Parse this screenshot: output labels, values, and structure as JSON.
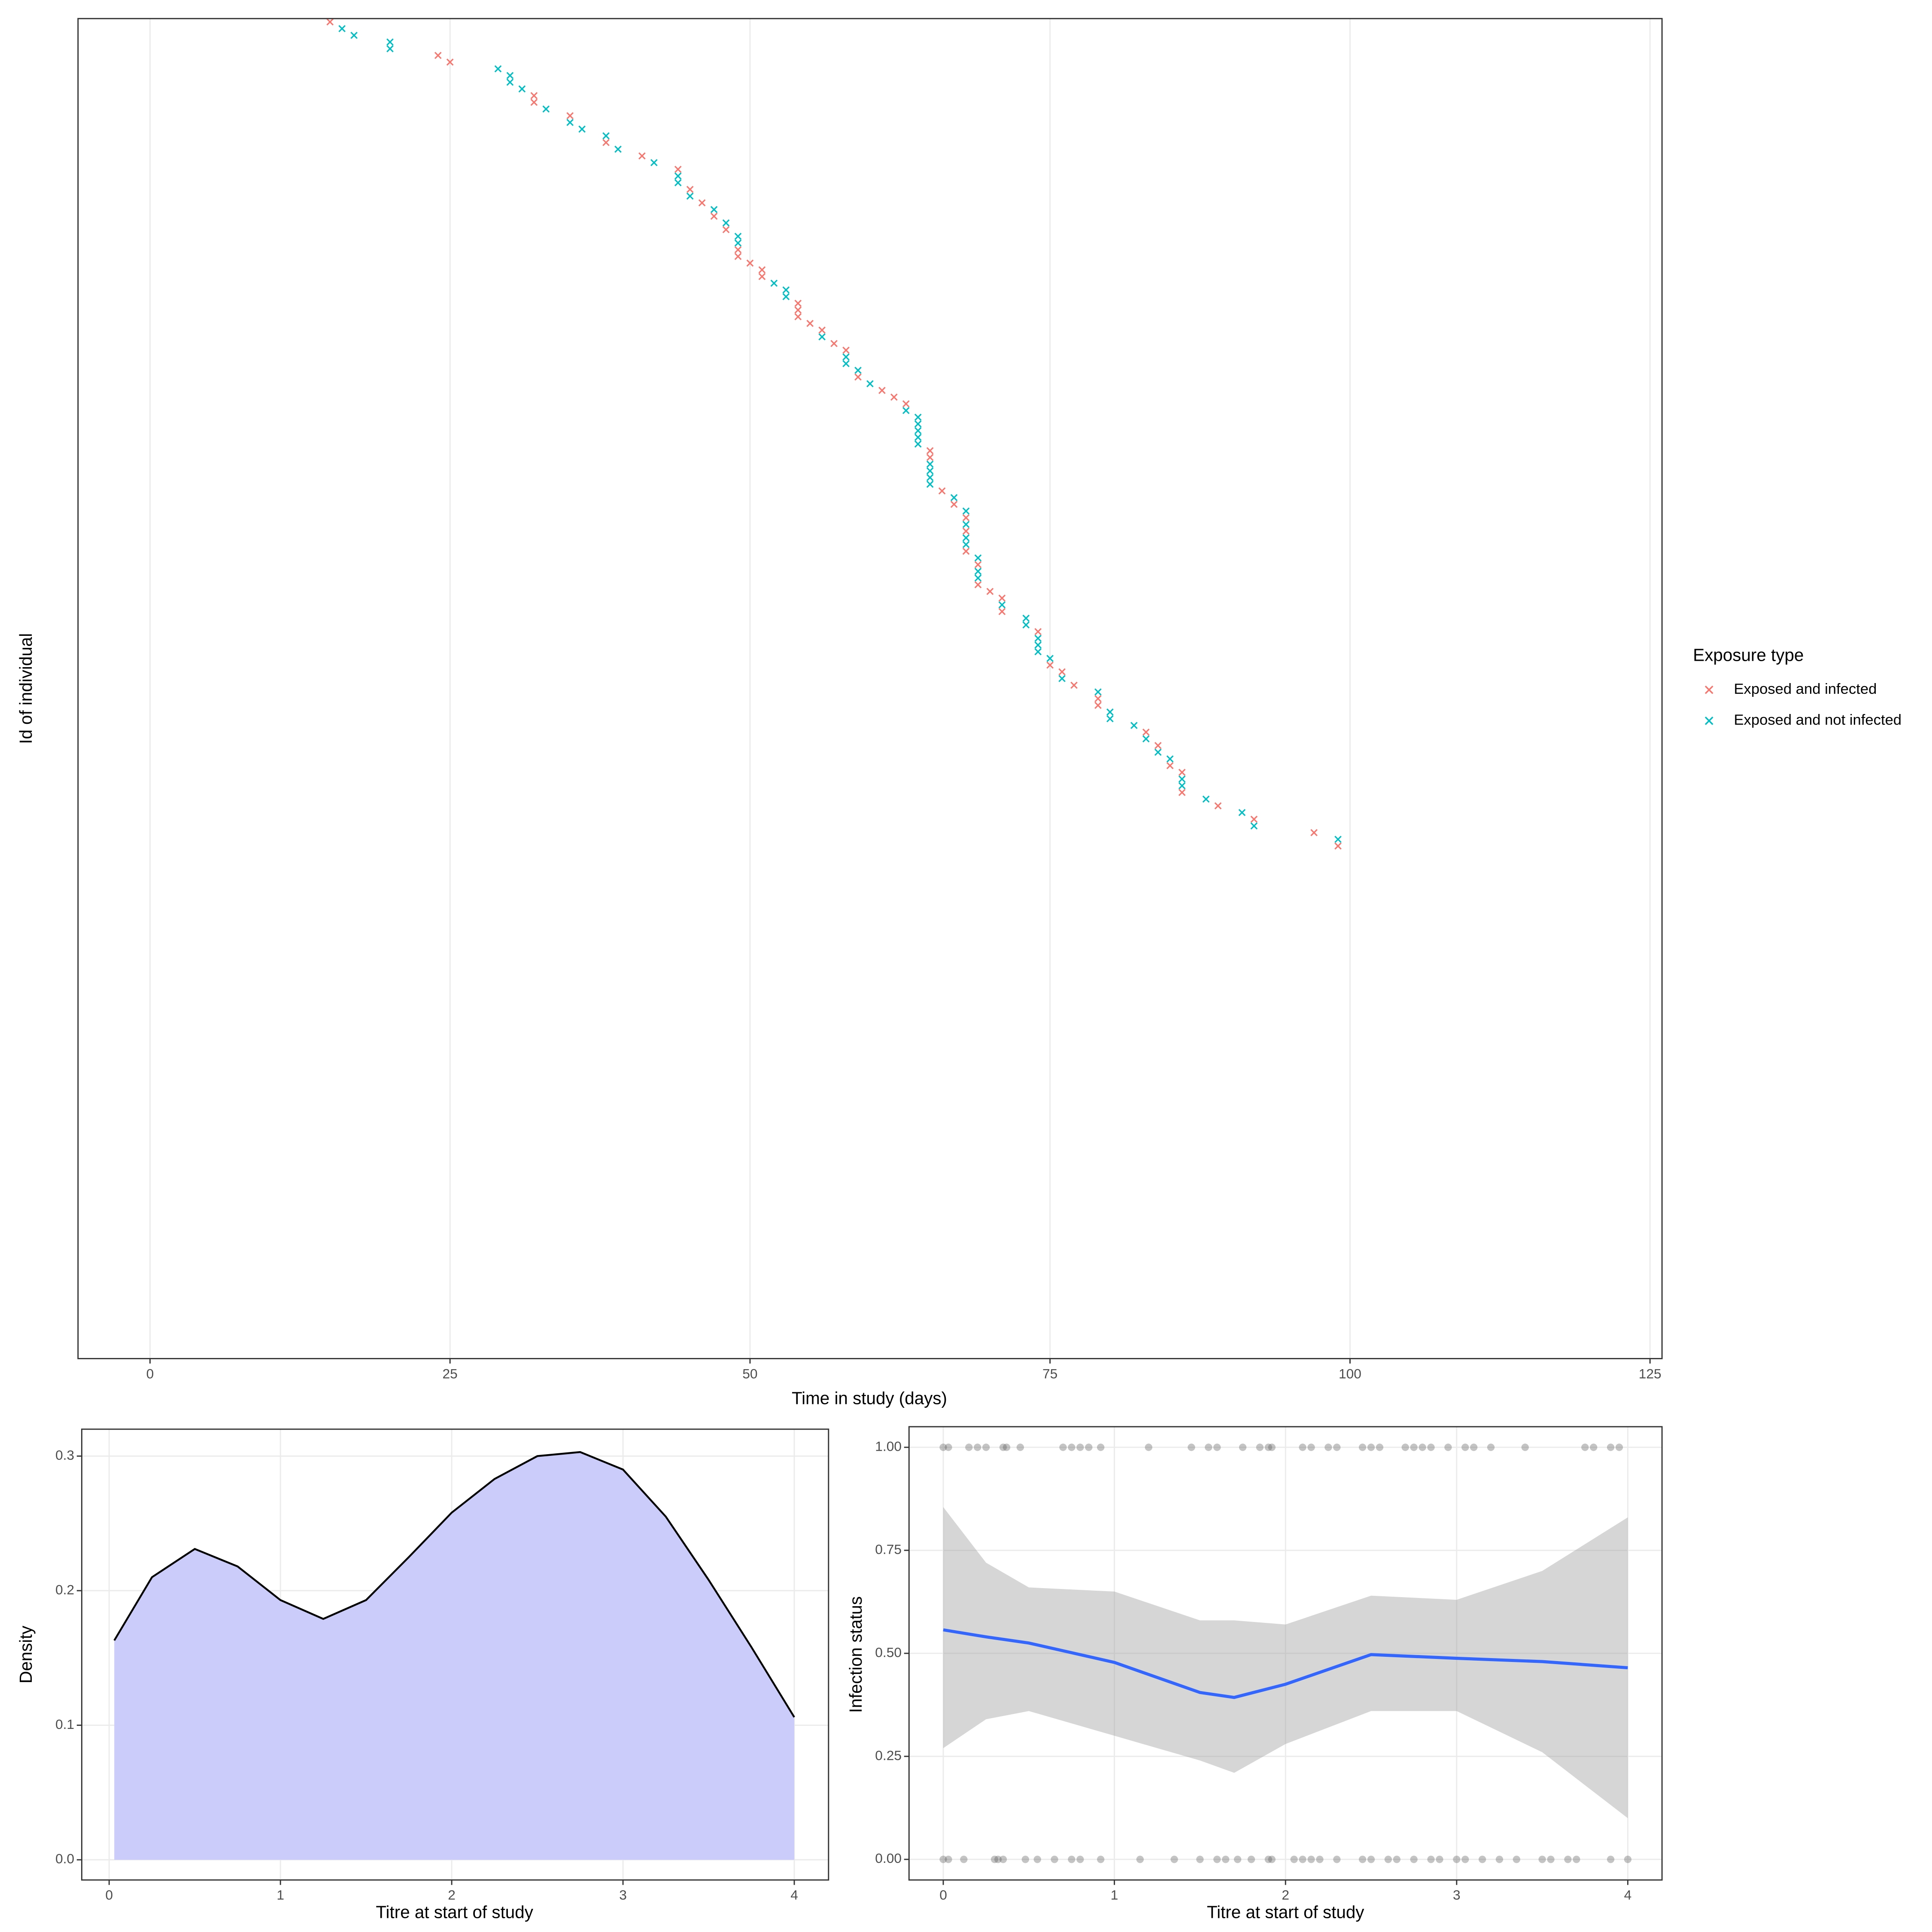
{
  "chart_data": [
    {
      "type": "scatter",
      "x_label": "Time in study (days)",
      "y_label": "Id of individual",
      "legend_title": "Exposure type",
      "legend": "right",
      "xlim": [
        -6,
        126
      ],
      "xticks": [
        0,
        25,
        50,
        75,
        100,
        125
      ],
      "grid": true,
      "series": [
        {
          "name": "Exposed and infected",
          "color": "#F8766D",
          "values": [
            15,
            null,
            null,
            null,
            null,
            24,
            25,
            null,
            null,
            null,
            null,
            32,
            32,
            null,
            35,
            null,
            null,
            null,
            38,
            null,
            41,
            null,
            44,
            null,
            null,
            45,
            null,
            46,
            null,
            47,
            null,
            48,
            null,
            null,
            49,
            49,
            50,
            51,
            51,
            null,
            null,
            null,
            54,
            54,
            54,
            55,
            56,
            null,
            57,
            58,
            null,
            null,
            null,
            59,
            null,
            61,
            62,
            63,
            null,
            null,
            null,
            null,
            null,
            null,
            65,
            65,
            null,
            null,
            null,
            null,
            66,
            null,
            67,
            null,
            68,
            null,
            68,
            null,
            null,
            68,
            null,
            69,
            null,
            null,
            69,
            70,
            71,
            null,
            71,
            null,
            null,
            74,
            null,
            null,
            null,
            null,
            75,
            76,
            null,
            77,
            null,
            79,
            79,
            null,
            null,
            null,
            83,
            null,
            84,
            null,
            null,
            85,
            86,
            null,
            null,
            86,
            null,
            89,
            null,
            92,
            null,
            97,
            null,
            99
          ]
        },
        {
          "name": "Exposed and not infected",
          "color": "#00BFC4",
          "values": [
            null,
            16,
            17,
            20,
            20,
            null,
            null,
            29,
            30,
            30,
            31,
            null,
            null,
            33,
            null,
            35,
            36,
            38,
            null,
            39,
            null,
            42,
            null,
            44,
            44,
            null,
            45,
            null,
            47,
            null,
            48,
            null,
            49,
            49,
            null,
            null,
            null,
            null,
            null,
            52,
            53,
            53,
            null,
            null,
            null,
            null,
            null,
            56,
            null,
            null,
            58,
            58,
            59,
            null,
            60,
            null,
            null,
            null,
            63,
            64,
            64,
            64,
            64,
            64,
            null,
            null,
            65,
            65,
            65,
            65,
            null,
            67,
            null,
            68,
            null,
            68,
            null,
            68,
            68,
            null,
            69,
            null,
            69,
            69,
            null,
            null,
            null,
            71,
            null,
            73,
            73,
            null,
            74,
            74,
            74,
            75,
            null,
            null,
            76,
            null,
            79,
            null,
            null,
            80,
            80,
            82,
            null,
            83,
            null,
            84,
            85,
            null,
            null,
            86,
            86,
            null,
            88,
            null,
            91,
            null,
            92,
            null,
            99,
            null
          ]
        }
      ]
    },
    {
      "type": "density",
      "x_label": "Titre at start of study",
      "y_label": "Density",
      "x": [
        0.03,
        0.25,
        0.5,
        0.75,
        1,
        1.25,
        1.5,
        1.75,
        2,
        2.25,
        2.5,
        2.75,
        3,
        3.25,
        3.5,
        3.75,
        4
      ],
      "values": [
        0.163,
        0.21,
        0.231,
        0.218,
        0.193,
        0.179,
        0.193,
        0.225,
        0.258,
        0.283,
        0.3,
        0.303,
        0.29,
        0.255,
        0.208,
        0.158,
        0.106
      ],
      "color": "#ccccfa",
      "line_color": "#000000",
      "grid": true,
      "xlim": [
        -0.16,
        4.2
      ],
      "xticks": [
        0,
        1,
        2,
        3,
        4
      ],
      "ylim": [
        -0.015,
        0.32
      ],
      "yticks": [
        {
          "value": 0,
          "label": "0.0"
        },
        0.1,
        0.2,
        0.3
      ]
    },
    {
      "type": "smooth",
      "x_label": "Titre at start of study",
      "y_label": "Infection status",
      "x": [
        0,
        0.25,
        0.5,
        1,
        1.5,
        1.7,
        2,
        2.5,
        3,
        3.5,
        4
      ],
      "values": [
        0.557,
        0.54,
        0.525,
        0.478,
        0.405,
        0.393,
        0.425,
        0.497,
        0.488,
        0.48,
        0.465
      ],
      "lower": [
        0.27,
        0.34,
        0.36,
        0.3,
        0.24,
        0.21,
        0.28,
        0.36,
        0.36,
        0.26,
        0.1
      ],
      "upper": [
        0.855,
        0.72,
        0.66,
        0.65,
        0.58,
        0.58,
        0.57,
        0.64,
        0.63,
        0.7,
        0.83
      ],
      "color": "#3366FF",
      "band_color": "#999999",
      "point_color": "#555555",
      "grid": true,
      "points": {
        "x": [
          0,
          0.03,
          0.15,
          0.2,
          0.25,
          0.35,
          0.37,
          0.45,
          0.7,
          0.75,
          0.8,
          0.85,
          0.92,
          1.2,
          1.45,
          1.55,
          1.6,
          1.75,
          1.85,
          1.9,
          1.92,
          2.1,
          2.15,
          2.25,
          2.3,
          2.45,
          2.5,
          2.55,
          2.7,
          2.75,
          2.8,
          2.85,
          2.95,
          3.05,
          3.1,
          3.2,
          3.4,
          3.75,
          3.8,
          3.9,
          3.95,
          0,
          0.03,
          0.12,
          0.3,
          0.32,
          0.35,
          0.48,
          0.55,
          0.65,
          0.75,
          0.8,
          0.92,
          1.15,
          1.35,
          1.5,
          1.6,
          1.65,
          1.72,
          1.8,
          1.9,
          1.92,
          2.05,
          2.1,
          2.15,
          2.2,
          2.3,
          2.45,
          2.5,
          2.6,
          2.65,
          2.75,
          2.85,
          2.9,
          3.0,
          3.05,
          3.15,
          3.25,
          3.35,
          3.5,
          3.55,
          3.65,
          3.7,
          3.9,
          4.0
        ],
        "values": [
          1,
          1,
          1,
          1,
          1,
          1,
          1,
          1,
          1,
          1,
          1,
          1,
          1,
          1,
          1,
          1,
          1,
          1,
          1,
          1,
          1,
          1,
          1,
          1,
          1,
          1,
          1,
          1,
          1,
          1,
          1,
          1,
          1,
          1,
          1,
          1,
          1,
          1,
          1,
          1,
          1,
          0,
          0,
          0,
          0,
          0,
          0,
          0,
          0,
          0,
          0,
          0,
          0,
          0,
          0,
          0,
          0,
          0,
          0,
          0,
          0,
          0,
          0,
          0,
          0,
          0,
          0,
          0,
          0,
          0,
          0,
          0,
          0,
          0,
          0,
          0,
          0,
          0,
          0,
          0,
          0,
          0,
          0,
          0,
          0
        ]
      },
      "xlim": [
        -0.2,
        4.2
      ],
      "xticks": [
        0,
        1,
        2,
        3,
        4
      ],
      "ylim": [
        -0.05,
        1.05
      ],
      "yticks": [
        {
          "value": 0,
          "label": "0.00"
        },
        {
          "value": 0.25,
          "label": "0.25"
        },
        {
          "value": 0.5,
          "label": "0.50"
        },
        {
          "value": 0.75,
          "label": "0.75"
        },
        {
          "value": 1,
          "label": "1.00"
        }
      ]
    }
  ]
}
